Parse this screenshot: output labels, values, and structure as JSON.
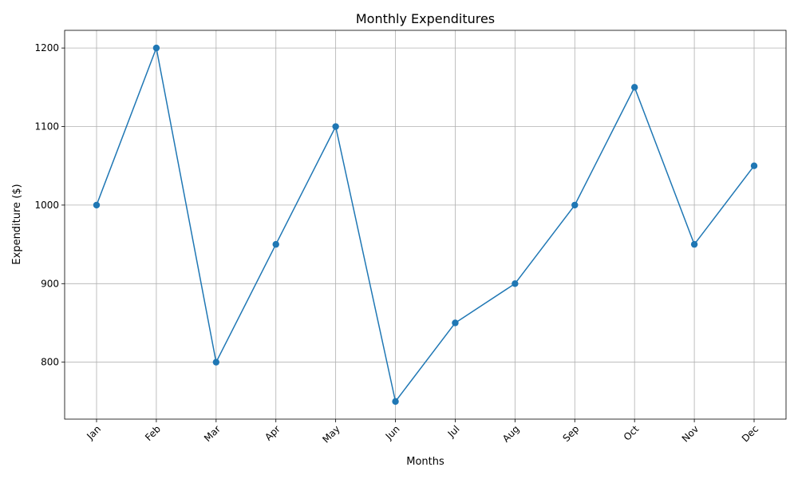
{
  "chart_data": {
    "type": "line",
    "title": "Monthly Expenditures",
    "xlabel": "Months",
    "ylabel": "Expenditure ($)",
    "categories": [
      "Jan",
      "Feb",
      "Mar",
      "Apr",
      "May",
      "Jun",
      "Jul",
      "Aug",
      "Sep",
      "Oct",
      "Nov",
      "Dec"
    ],
    "series": [
      {
        "values": [
          1000,
          1200,
          800,
          950,
          1100,
          750,
          850,
          900,
          1000,
          1150,
          950,
          1050
        ],
        "color": "#1f77b4",
        "marker": "circle"
      }
    ],
    "ylim": [
      727.5,
      1222.5
    ],
    "yticks": [
      800,
      900,
      1000,
      1100,
      1200
    ],
    "grid": true,
    "xtick_rotation": 45,
    "legend": "none"
  }
}
